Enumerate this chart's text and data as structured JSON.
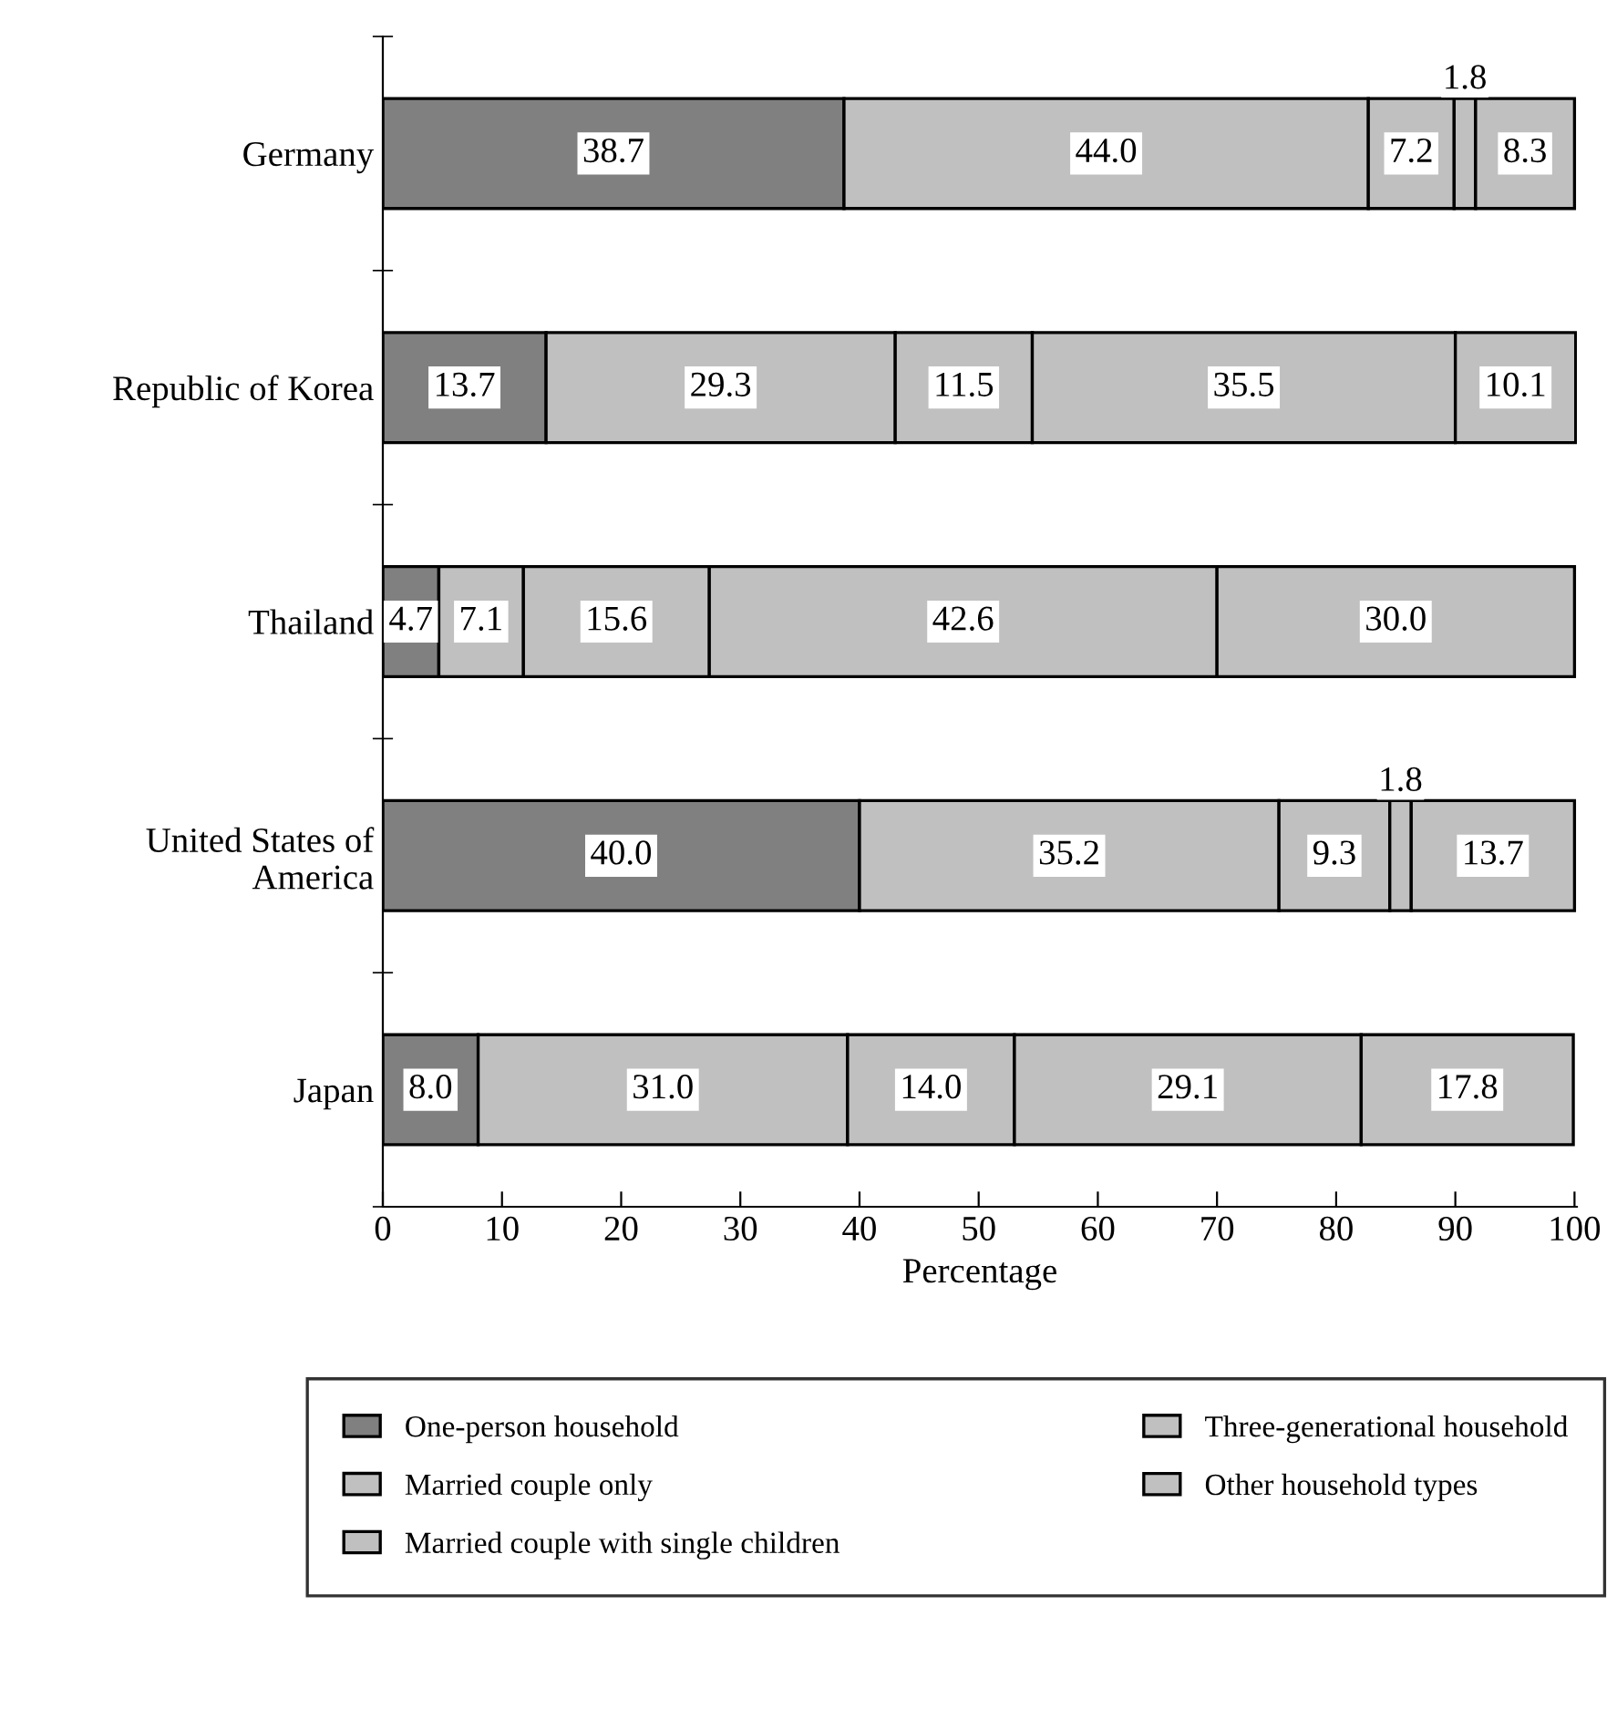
{
  "chart_data": {
    "type": "bar",
    "orientation": "horizontal",
    "stacked": true,
    "xlabel": "Percentage",
    "categories": [
      "Germany",
      "Republic of Korea",
      "Thailand",
      "United States of\nAmerica",
      "Japan"
    ],
    "series": [
      {
        "name": "One-person household",
        "color": "#808080",
        "values": [
          38.7,
          13.7,
          4.7,
          40.0,
          8.0
        ],
        "value_labels": [
          "38.7",
          "13.7",
          "4.7",
          "40.0",
          "8.0"
        ]
      },
      {
        "name": "Married couple only",
        "color": "#c0c0c0",
        "values": [
          44.0,
          29.3,
          7.1,
          35.2,
          31.0
        ],
        "value_labels": [
          "44.0",
          "29.3",
          "7.1",
          "35.2",
          "31.0"
        ]
      },
      {
        "name": "Married couple with single children",
        "color": "#c0c0c0",
        "values": [
          7.2,
          11.5,
          15.6,
          9.3,
          14.0
        ],
        "value_labels": [
          "7.2",
          "11.5",
          "15.6",
          "9.3",
          "14.0"
        ]
      },
      {
        "name": "Three-generational household",
        "color": "#c0c0c0",
        "values": [
          1.8,
          35.5,
          42.6,
          1.8,
          29.1
        ],
        "value_labels": [
          "1.8",
          "35.5",
          "42.6",
          "1.8",
          "29.1"
        ]
      },
      {
        "name": "Other household types",
        "color": "#c0c0c0",
        "values": [
          8.3,
          10.1,
          30.0,
          13.7,
          17.8
        ],
        "value_labels": [
          "8.3",
          "10.1",
          "30.0",
          "13.7",
          "17.8"
        ]
      }
    ],
    "xlim": [
      0,
      100.2
    ],
    "xticks": [
      0,
      10,
      20,
      30,
      40,
      50,
      60,
      70,
      80,
      90,
      100
    ],
    "grid": false,
    "legend": "bottom"
  }
}
